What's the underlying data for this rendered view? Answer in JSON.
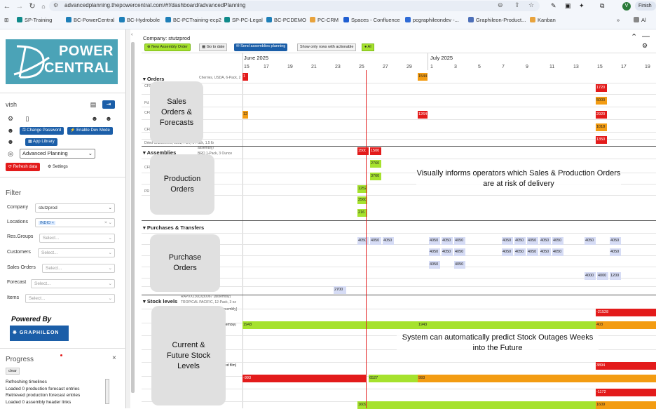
{
  "browser": {
    "url": "advancedplanning.thepowercentral.com/#!/dashboard/advancedPlanning",
    "profile_initial": "V",
    "finish_label": "Finish",
    "bookmarks": [
      "SP-Training",
      "BC-PowerCentral",
      "BC-Hydrobole",
      "BC-PCTraining-ecp2",
      "SP-PC-Legal",
      "BC-PCDEMO",
      "PC-CRM",
      "Spaces - Confluence",
      "pcgraphileondev -...",
      "Graphileon-Product...",
      "Kanban"
    ],
    "bookmark_overflow": "»",
    "all_bookmarks": "Al"
  },
  "sidebar": {
    "logo_line1": "POWER",
    "logo_line2": "CENTRAL",
    "user": "vish",
    "buttons": {
      "change_password": "Change Password",
      "enable_dev_mode": "Enable Dev Mode",
      "app_library": "App Library",
      "refresh_data": "Refresh data",
      "settings": "Settings"
    },
    "app_select": "Advanced Planning",
    "filter_title": "Filter",
    "filters": {
      "company_label": "Company",
      "company_value": "stutzprod",
      "locations_label": "Locations",
      "locations_tag": "INDIO",
      "resgroups_label": "Res.Groups",
      "resgroups_ph": "Select...",
      "customers_label": "Customers",
      "customers_ph": "Select...",
      "salesorders_label": "Sales Orders",
      "salesorders_ph": "Select...",
      "forecast_label": "Forecast",
      "forecast_ph": "Select...",
      "items_label": "Items",
      "items_ph": "Select..."
    },
    "powered_by": "Powered By",
    "graphileon": "GRAPHILEON",
    "progress_title": "Progress",
    "progress_clear": "clear",
    "progress_lines": [
      "Refreshing timelines",
      "Loaded 0 production forecast entries",
      "Retrieved production forecast entries",
      "Loaded 0 assembly header links"
    ]
  },
  "toolbar": {
    "company": "Company: stutzprod",
    "new_assembly": "New Assembly Order",
    "go_to_date": "Go to date",
    "send_assemblies": "Send assemblies planning",
    "show_actionable": "Show only rows with actionable",
    "ai": "AI"
  },
  "timeline": {
    "month1": "June 2025",
    "month2": "July 2025",
    "days": [
      "15",
      "17",
      "19",
      "21",
      "23",
      "25",
      "27",
      "29",
      "1",
      "3",
      "5",
      "7",
      "9",
      "11",
      "13",
      "15",
      "17",
      "19"
    ]
  },
  "sections": {
    "orders": "Orders",
    "assemblies": "Assemblies",
    "purchases": "Purchases & Transfers",
    "stock": "Stock levels"
  },
  "row_labels": [
    "Cherries, USDA, 6-Pack, 2 Pound",
    "CF0 ... ",
    "Pd ... ck, 1 Pound",
    "CF0 Film) 24-Pack, 1",
    "CF0 ... ",
    "Dried Cranberries, 18oz, Film) 6-Pack, 1.5 lb",
    "assembly)",
    "BRD 1-Pack, 3 Ounce",
    "CF0 ... rd",
    "PR 1-Pack, 1 Pound",
    "RAPXX130(0)30067 (assembly)",
    "TROPICAL PACIFIC, 12-Pack, 3 oz",
    "(assembly)",
    "assembly)",
    "(inted film)"
  ],
  "bars": {
    "orders": [
      "1",
      "1544",
      "1720",
      "5000",
      "12",
      "1264",
      "2920",
      "1018",
      "1350"
    ],
    "assemblies": [
      "1500",
      "1500",
      "2760",
      "3760",
      "1252",
      "2560",
      "216"
    ],
    "purchases_row1": [
      "4050",
      "4050",
      "4050",
      "4050",
      "4050",
      "4050",
      "4050",
      "4050",
      "4050",
      "4050",
      "4050",
      "4050",
      "4050"
    ],
    "purchases_row2": [
      "4050",
      "4050",
      "4050",
      "4050",
      "4050",
      "4050",
      "4050",
      "4050",
      "4050"
    ],
    "purchases_row3": [
      "4050",
      "4050"
    ],
    "purchases_row4": [
      "4000",
      "4000",
      "1200"
    ],
    "purchases_row5": [
      "2700"
    ],
    "stock_row1": "-21528",
    "stock_row2": [
      "1943",
      "1943",
      "403"
    ],
    "stock_row3": "3894",
    "stock_row4": [
      "-993",
      "6527",
      "993"
    ],
    "stock_row5": "-1172",
    "stock_row6": [
      "1609",
      "1609"
    ]
  },
  "callouts": {
    "sales": "Sales Orders & Forecasts",
    "production": "Production Orders",
    "purchase": "Purchase Orders",
    "stock": "Current & Future Stock Levels",
    "note_top": "Visually informs operators which Sales & Production Orders are at risk of delivery",
    "note_bottom": "System can automatically predict Stock Outages Weeks into the Future"
  },
  "colors": {
    "red": "#e31b1b",
    "orange": "#f39c12",
    "green": "#a6e22e",
    "lavender": "#d6dcf5",
    "teal": "#4ba3b7",
    "navy": "#1b5ea8"
  }
}
